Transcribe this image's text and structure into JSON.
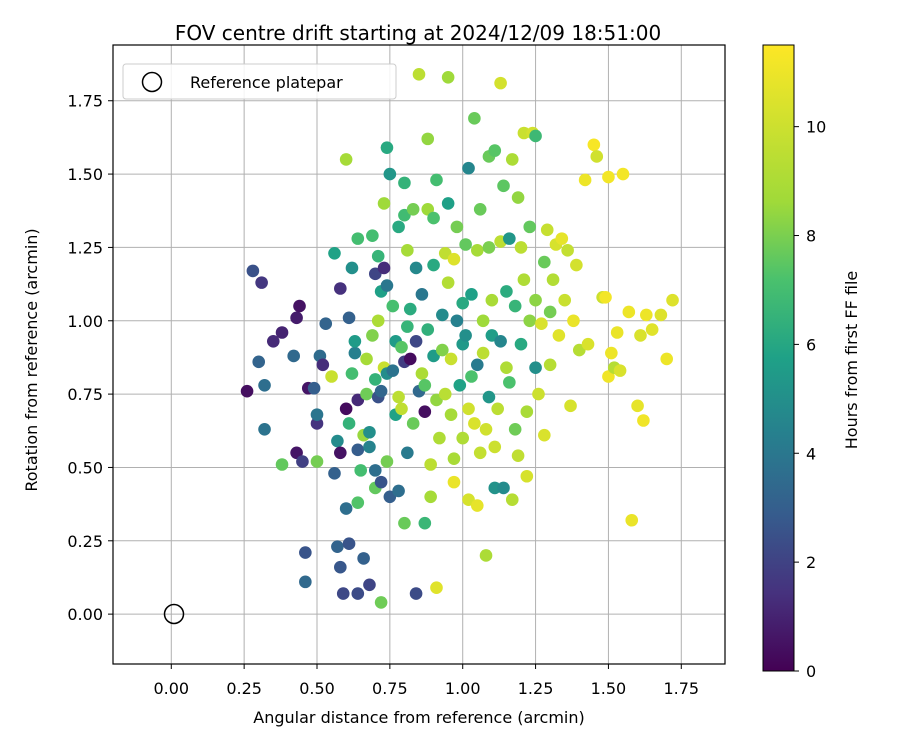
{
  "chart_data": {
    "type": "scatter",
    "title": "FOV centre drift starting at 2024/12/09 18:51:00",
    "xlabel": "Angular distance from reference (arcmin)",
    "ylabel": "Rotation from reference (arcmin)",
    "xlim": [
      -0.2,
      1.9
    ],
    "ylim": [
      -0.17,
      1.94
    ],
    "xticks": [
      0.0,
      0.25,
      0.5,
      0.75,
      1.0,
      1.25,
      1.5,
      1.75
    ],
    "xtick_labels": [
      "0.00",
      "0.25",
      "0.50",
      "0.75",
      "1.00",
      "1.25",
      "1.50",
      "1.75"
    ],
    "yticks": [
      0.0,
      0.25,
      0.5,
      0.75,
      1.0,
      1.25,
      1.5,
      1.75
    ],
    "ytick_labels": [
      "0.00",
      "0.25",
      "0.50",
      "0.75",
      "1.00",
      "1.25",
      "1.50",
      "1.75"
    ],
    "grid": true,
    "colormap": "viridis",
    "colorbar": {
      "label": "Hours from first FF file",
      "min": 0,
      "max": 11.5,
      "ticks": [
        0,
        2,
        4,
        6,
        8,
        10
      ],
      "tick_labels": [
        "0",
        "2",
        "4",
        "6",
        "8",
        "10"
      ]
    },
    "legend": {
      "placement": "top-left",
      "entries": [
        {
          "label": "Reference platepar",
          "marker": "open-circle",
          "color": "#000000"
        }
      ]
    },
    "reference_point": {
      "x": 0.0,
      "y": 0.0
    },
    "points": [
      [
        0.26,
        0.76,
        0.4
      ],
      [
        0.28,
        1.17,
        2.5
      ],
      [
        0.3,
        0.86,
        3.2
      ],
      [
        0.31,
        1.13,
        1.6
      ],
      [
        0.32,
        0.78,
        3.6
      ],
      [
        0.32,
        0.63,
        3.8
      ],
      [
        0.35,
        0.93,
        1.2
      ],
      [
        0.38,
        0.96,
        1.0
      ],
      [
        0.38,
        0.51,
        7.6
      ],
      [
        0.42,
        0.88,
        3.4
      ],
      [
        0.43,
        0.55,
        0.6
      ],
      [
        0.43,
        1.01,
        0.8
      ],
      [
        0.44,
        1.05,
        0.5
      ],
      [
        0.45,
        0.52,
        1.9
      ],
      [
        0.46,
        0.21,
        2.6
      ],
      [
        0.46,
        0.11,
        3.4
      ],
      [
        0.47,
        0.77,
        0.6
      ],
      [
        0.49,
        0.77,
        3.0
      ],
      [
        0.5,
        0.65,
        1.5
      ],
      [
        0.5,
        0.68,
        3.9
      ],
      [
        0.5,
        0.52,
        7.9
      ],
      [
        0.51,
        0.88,
        3.5
      ],
      [
        0.52,
        0.85,
        1.3
      ],
      [
        0.53,
        0.99,
        3.2
      ],
      [
        0.55,
        0.81,
        9.9
      ],
      [
        0.56,
        1.23,
        5.8
      ],
      [
        0.56,
        0.48,
        3.1
      ],
      [
        0.57,
        0.59,
        4.8
      ],
      [
        0.57,
        0.23,
        3.2
      ],
      [
        0.58,
        1.11,
        1.4
      ],
      [
        0.58,
        0.55,
        0.5
      ],
      [
        0.58,
        0.16,
        2.7
      ],
      [
        0.59,
        0.07,
        2.2
      ],
      [
        0.6,
        0.7,
        0.3
      ],
      [
        0.6,
        0.36,
        3.6
      ],
      [
        0.6,
        1.55,
        8.8
      ],
      [
        0.61,
        0.65,
        6.5
      ],
      [
        0.61,
        1.01,
        3.1
      ],
      [
        0.61,
        0.24,
        2.6
      ],
      [
        0.62,
        1.18,
        5.0
      ],
      [
        0.62,
        0.82,
        7.0
      ],
      [
        0.63,
        0.89,
        4.3
      ],
      [
        0.63,
        0.93,
        5.5
      ],
      [
        0.64,
        0.73,
        1.2
      ],
      [
        0.64,
        1.28,
        7.0
      ],
      [
        0.64,
        0.56,
        2.9
      ],
      [
        0.64,
        0.38,
        7.3
      ],
      [
        0.64,
        0.07,
        2.3
      ],
      [
        0.65,
        0.49,
        7.0
      ],
      [
        0.66,
        0.19,
        3.1
      ],
      [
        0.66,
        0.61,
        8.5
      ],
      [
        0.67,
        0.87,
        8.8
      ],
      [
        0.67,
        0.75,
        7.8
      ],
      [
        0.68,
        0.62,
        5.0
      ],
      [
        0.68,
        0.57,
        4.5
      ],
      [
        0.68,
        0.1,
        2.1
      ],
      [
        0.69,
        1.29,
        7.0
      ],
      [
        0.69,
        0.95,
        8.1
      ],
      [
        0.7,
        0.8,
        6.5
      ],
      [
        0.7,
        1.16,
        2.1
      ],
      [
        0.7,
        0.49,
        3.6
      ],
      [
        0.7,
        0.43,
        7.6
      ],
      [
        0.71,
        1.22,
        6.6
      ],
      [
        0.71,
        0.74,
        2.5
      ],
      [
        0.71,
        1.0,
        9.0
      ],
      [
        0.72,
        0.76,
        3.3
      ],
      [
        0.72,
        0.45,
        2.6
      ],
      [
        0.72,
        1.1,
        5.7
      ],
      [
        0.72,
        0.04,
        7.8
      ],
      [
        0.73,
        0.84,
        9.9
      ],
      [
        0.73,
        1.18,
        1.3
      ],
      [
        0.73,
        1.4,
        8.6
      ],
      [
        0.74,
        1.59,
        6.1
      ],
      [
        0.74,
        0.82,
        4.9
      ],
      [
        0.74,
        1.12,
        4.0
      ],
      [
        0.74,
        0.52,
        7.9
      ],
      [
        0.75,
        1.5,
        5.3
      ],
      [
        0.75,
        0.4,
        3.0
      ],
      [
        0.76,
        0.83,
        3.8
      ],
      [
        0.76,
        1.05,
        7.1
      ],
      [
        0.77,
        0.93,
        5.5
      ],
      [
        0.77,
        0.68,
        5.8
      ],
      [
        0.78,
        1.32,
        6.1
      ],
      [
        0.78,
        0.42,
        3.6
      ],
      [
        0.78,
        0.74,
        9.5
      ],
      [
        0.79,
        0.7,
        9.6
      ],
      [
        0.79,
        0.91,
        7.4
      ],
      [
        0.8,
        0.31,
        7.7
      ],
      [
        0.8,
        1.36,
        6.9
      ],
      [
        0.8,
        1.47,
        6.5
      ],
      [
        0.8,
        0.86,
        1.8
      ],
      [
        0.81,
        0.98,
        6.6
      ],
      [
        0.81,
        1.24,
        8.8
      ],
      [
        0.81,
        0.55,
        4.1
      ],
      [
        0.82,
        1.04,
        6.2
      ],
      [
        0.82,
        0.87,
        0.3
      ],
      [
        0.83,
        0.65,
        7.7
      ],
      [
        0.83,
        1.38,
        7.9
      ],
      [
        0.84,
        1.18,
        4.7
      ],
      [
        0.84,
        0.93,
        2.2
      ],
      [
        0.84,
        0.07,
        2.3
      ],
      [
        0.85,
        0.76,
        3.4
      ],
      [
        0.85,
        1.84,
        9.5
      ],
      [
        0.86,
        1.09,
        4.0
      ],
      [
        0.86,
        0.82,
        9.0
      ],
      [
        0.87,
        0.31,
        6.7
      ],
      [
        0.87,
        0.78,
        7.4
      ],
      [
        0.87,
        0.69,
        0.4
      ],
      [
        0.88,
        1.62,
        8.4
      ],
      [
        0.88,
        1.38,
        8.6
      ],
      [
        0.88,
        0.97,
        6.4
      ],
      [
        0.89,
        0.51,
        9.5
      ],
      [
        0.89,
        0.4,
        8.8
      ],
      [
        0.9,
        1.19,
        6.1
      ],
      [
        0.9,
        1.35,
        7.2
      ],
      [
        0.9,
        0.88,
        5.5
      ],
      [
        0.91,
        1.48,
        7.0
      ],
      [
        0.91,
        0.73,
        8.4
      ],
      [
        0.91,
        0.09,
        10.6
      ],
      [
        0.92,
        0.6,
        9.1
      ],
      [
        0.93,
        0.9,
        8.1
      ],
      [
        0.93,
        1.02,
        4.8
      ],
      [
        0.94,
        1.23,
        9.6
      ],
      [
        0.94,
        0.75,
        9.4
      ],
      [
        0.95,
        1.4,
        5.7
      ],
      [
        0.95,
        1.13,
        9.2
      ],
      [
        0.95,
        1.83,
        8.6
      ],
      [
        0.96,
        0.87,
        9.9
      ],
      [
        0.96,
        0.68,
        8.8
      ],
      [
        0.97,
        1.21,
        10.5
      ],
      [
        0.97,
        0.53,
        8.9
      ],
      [
        0.97,
        0.45,
        10.9
      ],
      [
        0.98,
        1.0,
        4.4
      ],
      [
        0.98,
        1.32,
        7.9
      ],
      [
        0.99,
        0.78,
        5.8
      ],
      [
        1.0,
        0.92,
        5.4
      ],
      [
        1.0,
        1.06,
        6.1
      ],
      [
        1.0,
        0.6,
        9.1
      ],
      [
        1.01,
        1.26,
        7.6
      ],
      [
        1.01,
        0.95,
        5.0
      ],
      [
        1.02,
        1.52,
        4.6
      ],
      [
        1.02,
        0.7,
        10.1
      ],
      [
        1.02,
        0.39,
        10.3
      ],
      [
        1.03,
        1.09,
        5.7
      ],
      [
        1.03,
        0.81,
        7.2
      ],
      [
        1.04,
        0.65,
        10.4
      ],
      [
        1.04,
        1.69,
        7.7
      ],
      [
        1.05,
        1.24,
        8.8
      ],
      [
        1.05,
        0.37,
        10.8
      ],
      [
        1.05,
        0.85,
        4.1
      ],
      [
        1.06,
        1.38,
        7.7
      ],
      [
        1.06,
        0.55,
        9.7
      ],
      [
        1.07,
        1.0,
        8.6
      ],
      [
        1.07,
        0.89,
        9.5
      ],
      [
        1.08,
        0.63,
        10.1
      ],
      [
        1.08,
        0.2,
        9.0
      ],
      [
        1.09,
        1.25,
        8.0
      ],
      [
        1.09,
        1.56,
        7.7
      ],
      [
        1.09,
        0.74,
        5.3
      ],
      [
        1.1,
        0.95,
        5.6
      ],
      [
        1.1,
        1.07,
        8.9
      ],
      [
        1.11,
        0.57,
        10.0
      ],
      [
        1.11,
        1.58,
        7.4
      ],
      [
        1.11,
        0.43,
        5.1
      ],
      [
        1.12,
        0.7,
        9.5
      ],
      [
        1.13,
        1.27,
        9.5
      ],
      [
        1.13,
        1.81,
        10.2
      ],
      [
        1.13,
        0.93,
        4.6
      ],
      [
        1.14,
        0.43,
        4.8
      ],
      [
        1.14,
        1.46,
        7.5
      ],
      [
        1.15,
        1.1,
        6.2
      ],
      [
        1.15,
        0.84,
        9.1
      ],
      [
        1.16,
        1.28,
        5.3
      ],
      [
        1.16,
        0.79,
        7.2
      ],
      [
        1.17,
        1.55,
        9.0
      ],
      [
        1.17,
        0.39,
        9.3
      ],
      [
        1.18,
        1.05,
        6.6
      ],
      [
        1.18,
        0.63,
        7.8
      ],
      [
        1.19,
        1.42,
        8.4
      ],
      [
        1.19,
        0.54,
        9.6
      ],
      [
        1.2,
        1.25,
        9.5
      ],
      [
        1.2,
        0.92,
        6.1
      ],
      [
        1.21,
        1.14,
        9.1
      ],
      [
        1.21,
        1.64,
        9.9
      ],
      [
        1.22,
        0.47,
        10.3
      ],
      [
        1.22,
        0.69,
        8.9
      ],
      [
        1.23,
        1.0,
        8.3
      ],
      [
        1.23,
        1.32,
        7.6
      ],
      [
        1.24,
        1.64,
        10.2
      ],
      [
        1.25,
        1.07,
        8.3
      ],
      [
        1.25,
        0.84,
        5.0
      ],
      [
        1.25,
        1.63,
        6.8
      ],
      [
        1.26,
        0.75,
        10.0
      ],
      [
        1.27,
        0.99,
        10.4
      ],
      [
        1.28,
        1.2,
        7.7
      ],
      [
        1.28,
        0.61,
        10.4
      ],
      [
        1.29,
        1.31,
        9.8
      ],
      [
        1.3,
        0.85,
        9.3
      ],
      [
        1.3,
        1.03,
        7.9
      ],
      [
        1.31,
        1.14,
        9.2
      ],
      [
        1.32,
        1.26,
        10.3
      ],
      [
        1.33,
        0.95,
        10.6
      ],
      [
        1.34,
        1.28,
        10.8
      ],
      [
        1.35,
        1.07,
        9.9
      ],
      [
        1.36,
        1.24,
        9.7
      ],
      [
        1.37,
        0.71,
        10.3
      ],
      [
        1.38,
        1.0,
        10.9
      ],
      [
        1.39,
        1.19,
        10.2
      ],
      [
        1.4,
        0.9,
        9.3
      ],
      [
        1.42,
        1.48,
        11.0
      ],
      [
        1.43,
        0.92,
        10.4
      ],
      [
        1.45,
        1.6,
        11.3
      ],
      [
        1.46,
        1.56,
        10.1
      ],
      [
        1.48,
        1.08,
        10.0
      ],
      [
        1.49,
        1.08,
        11.2
      ],
      [
        1.5,
        1.49,
        11.2
      ],
      [
        1.5,
        0.81,
        11.1
      ],
      [
        1.51,
        0.89,
        11.0
      ],
      [
        1.52,
        0.84,
        9.3
      ],
      [
        1.53,
        0.96,
        10.9
      ],
      [
        1.54,
        0.83,
        10.4
      ],
      [
        1.55,
        1.5,
        11.2
      ],
      [
        1.57,
        1.03,
        11.0
      ],
      [
        1.58,
        0.32,
        10.9
      ],
      [
        1.6,
        0.71,
        10.8
      ],
      [
        1.61,
        0.95,
        10.4
      ],
      [
        1.62,
        0.66,
        11.1
      ],
      [
        1.63,
        1.02,
        11.0
      ],
      [
        1.65,
        0.97,
        10.6
      ],
      [
        1.68,
        1.02,
        10.5
      ],
      [
        1.7,
        0.87,
        11.0
      ],
      [
        1.72,
        1.07,
        10.5
      ]
    ]
  }
}
